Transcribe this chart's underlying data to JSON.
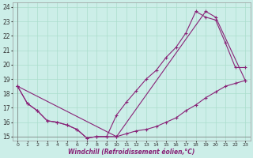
{
  "xlabel": "Windchill (Refroidissement éolien,°C)",
  "bg_color": "#cceee8",
  "line_color": "#882277",
  "grid_color": "#aaddcc",
  "xmin": 0,
  "xmax": 23,
  "ymin": 15,
  "ymax": 24,
  "yticks": [
    15,
    16,
    17,
    18,
    19,
    20,
    21,
    22,
    23,
    24
  ],
  "xticks": [
    0,
    1,
    2,
    3,
    4,
    5,
    6,
    7,
    8,
    9,
    10,
    11,
    12,
    13,
    14,
    15,
    16,
    17,
    18,
    19,
    20,
    21,
    22,
    23
  ],
  "line1_x": [
    0,
    1,
    2,
    3,
    4,
    5,
    6,
    7,
    8,
    9,
    10,
    11,
    12,
    13,
    14,
    15,
    16,
    17,
    18,
    19,
    20,
    21,
    22,
    23
  ],
  "line1_y": [
    18.5,
    17.3,
    16.8,
    16.1,
    16.0,
    15.8,
    15.5,
    14.9,
    15.0,
    15.0,
    16.5,
    17.4,
    18.2,
    19.0,
    19.6,
    20.5,
    21.2,
    22.2,
    23.7,
    23.3,
    23.1,
    21.5,
    19.8,
    19.8
  ],
  "line2_x": [
    0,
    1,
    2,
    3,
    4,
    5,
    6,
    7,
    8,
    9,
    10,
    11,
    12,
    13,
    14,
    15,
    16,
    17,
    18,
    19,
    20,
    21,
    22,
    23
  ],
  "line2_y": [
    18.5,
    17.3,
    16.8,
    16.1,
    16.0,
    15.8,
    15.5,
    14.9,
    15.0,
    15.0,
    15.0,
    15.2,
    15.4,
    15.5,
    15.7,
    16.0,
    16.3,
    16.8,
    17.2,
    17.7,
    18.1,
    18.5,
    18.7,
    18.9
  ],
  "line3_x": [
    0,
    10,
    19,
    20,
    23
  ],
  "line3_y": [
    18.5,
    15.0,
    23.7,
    23.3,
    18.9
  ]
}
